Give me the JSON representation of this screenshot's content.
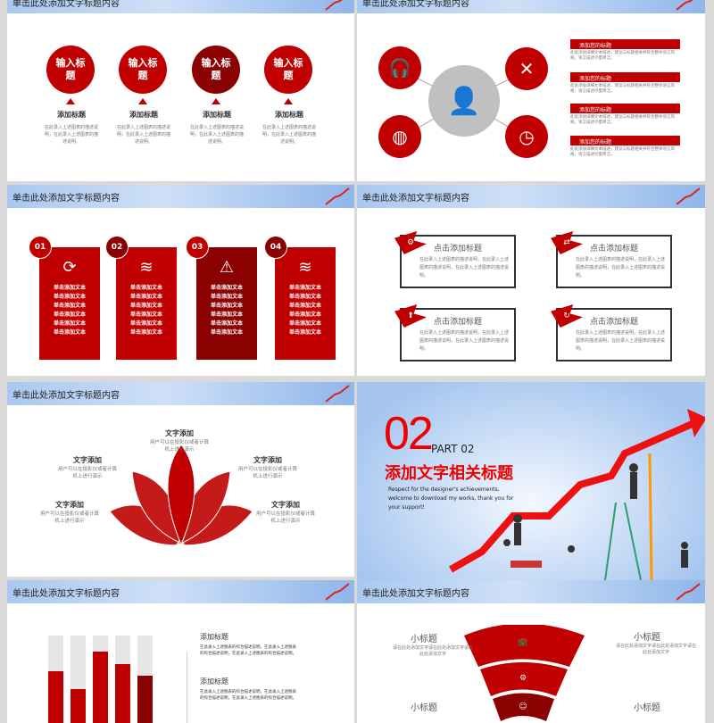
{
  "header_title": "单击此处添加文字标题内容",
  "colors": {
    "accent": "#c00000",
    "accent_dark": "#8b0000",
    "header": "#a9c8ef"
  },
  "slide1": {
    "items": [
      {
        "circle": "输入标题",
        "title": "添加标题",
        "desc": "在此录入上述图表的描述说明，在此录入上述图表的描述说明。"
      },
      {
        "circle": "输入标题",
        "title": "添加标题",
        "desc": "在此录入上述图表的描述说明，在此录入上述图表的描述说明。"
      },
      {
        "circle": "输入标题",
        "title": "添加标题",
        "desc": "在此录入上述图表的描述说明，在此录入上述图表的描述说明。"
      },
      {
        "circle": "输入标题",
        "title": "添加标题",
        "desc": "在此录入上述图表的描述说明，在此录入上述图表的描述说明。"
      }
    ]
  },
  "slide2": {
    "icons": [
      "headset-icon",
      "tools-icon",
      "globe-icon",
      "clock-icon",
      "user-icon"
    ],
    "items": [
      {
        "title": "添加您的标题",
        "desc": "此处添加详细文本描述，建议与标题相关并符合整体语言风格，语言描述尽量简洁。"
      },
      {
        "title": "添加您的标题",
        "desc": "此处添加详细文本描述，建议与标题相关并符合整体语言风格，语言描述尽量简洁。"
      },
      {
        "title": "添加您的标题",
        "desc": "此处添加详细文本描述，建议与标题相关并符合整体语言风格，语言描述尽量简洁。"
      },
      {
        "title": "添加您的标题",
        "desc": "此处添加详细文本描述，建议与标题相关并符合整体语言风格，语言描述尽量简洁。"
      }
    ]
  },
  "slide3": {
    "cards": [
      {
        "num": "01",
        "icon": "refresh-chart-icon",
        "lines": [
          "单击添加文本",
          "单击添加文本",
          "单击添加文本",
          "单击添加文本",
          "单击添加文本",
          "单击添加文本"
        ]
      },
      {
        "num": "02",
        "icon": "layers-icon",
        "lines": [
          "单击添加文本",
          "单击添加文本",
          "单击添加文本",
          "单击添加文本",
          "单击添加文本",
          "单击添加文本"
        ]
      },
      {
        "num": "03",
        "icon": "alert-gear-icon",
        "lines": [
          "单击添加文本",
          "单击添加文本",
          "单击添加文本",
          "单击添加文本",
          "单击添加文本",
          "单击添加文本"
        ]
      },
      {
        "num": "04",
        "icon": "layers-icon",
        "lines": [
          "单击添加文本",
          "单击添加文本",
          "单击添加文本",
          "单击添加文本",
          "单击添加文本",
          "单击添加文本"
        ]
      }
    ]
  },
  "slide4": {
    "boxes": [
      {
        "title": "点击添加标题",
        "desc": "在此录入上述图表的描述说明，在此录入上述图表的描述说明，在此录入上述图表的描述说明。",
        "icon": "gears-icon"
      },
      {
        "title": "点击添加标题",
        "desc": "在此录入上述图表的描述说明，在此录入上述图表的描述说明，在此录入上述图表的描述说明。",
        "icon": "arrows-icon"
      },
      {
        "title": "点击添加标题",
        "desc": "在此录入上述图表的描述说明，在此录入上述图表的描述说明，在此录入上述图表的描述说明。",
        "icon": "arrow-up-icon"
      },
      {
        "title": "点击添加标题",
        "desc": "在此录入上述图表的描述说明，在此录入上述图表的描述说明，在此录入上述图表的描述说明。",
        "icon": "reload-icon"
      }
    ]
  },
  "slide5": {
    "items": [
      {
        "title": "文字添加",
        "desc": "用户可以在投影仪或者计算机上进行演示"
      },
      {
        "title": "文字添加",
        "desc": "用户可以在投影仪或者计算机上进行演示"
      },
      {
        "title": "文字添加",
        "desc": "用户可以在投影仪或者计算机上进行演示"
      },
      {
        "title": "文字添加",
        "desc": "用户可以在投影仪或者计算机上进行演示"
      },
      {
        "title": "文字添加",
        "desc": "用户可以在投影仪或者计算机上进行演示"
      }
    ]
  },
  "slide6": {
    "number": "02",
    "part": "PART 02",
    "title": "添加文字相关标题",
    "desc": "Respect for the designer's achievements, welcome to download my works, thank you for your support!"
  },
  "slide7": {
    "bars": [
      0.6,
      0.4,
      0.82,
      0.68,
      0.55
    ],
    "items": [
      {
        "title": "添加标题",
        "desc": "在此录入上述图表的综合描述说明，在此录入上述图表的综合描述说明，在此录入上述图表的综合描述说明。"
      },
      {
        "title": "添加标题",
        "desc": "在此录入上述图表的综合描述说明，在此录入上述图表的综合描述说明，在此录入上述图表的综合描述说明。"
      }
    ]
  },
  "slide8": {
    "icons": [
      "briefcase-icon",
      "gears-icon",
      "head-icon"
    ],
    "items": [
      {
        "title": "小标题",
        "desc": "请在此处添加文字请在此处添加文字请在此处添加文字"
      },
      {
        "title": "小标题",
        "desc": "请在此处添加文字请在此处添加文字请在此处添加文字"
      },
      {
        "title": "小标题",
        "desc": ""
      },
      {
        "title": "小标题",
        "desc": ""
      }
    ]
  }
}
